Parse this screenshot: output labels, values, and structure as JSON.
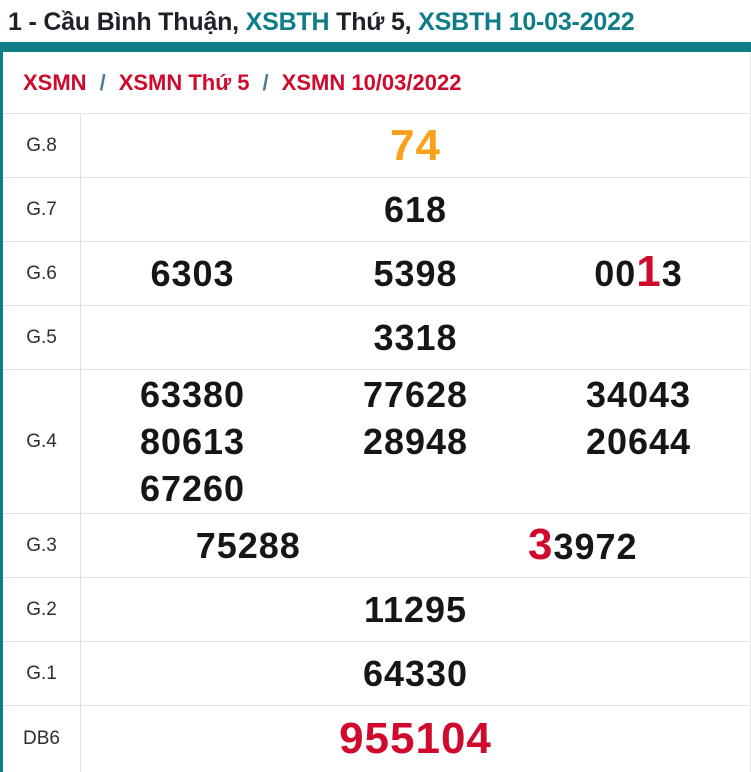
{
  "title": {
    "plain1": "1 - Cầu Bình Thuận, ",
    "link1": "XSBTH",
    "plain2": " Thứ 5, ",
    "link2": "XSBTH 10-03-2022"
  },
  "breadcrumb": {
    "item1": "XSMN",
    "sep1": "/",
    "item2": "XSMN Thứ 5",
    "sep2": "/",
    "item3": "XSMN 10/03/2022"
  },
  "table": {
    "rows": {
      "g8": {
        "label": "G.8",
        "value": "74"
      },
      "g7": {
        "label": "G.7",
        "value": "618"
      },
      "g6": {
        "label": "G.6",
        "v1": "6303",
        "v2": "5398",
        "v3_prefix": "00",
        "v3_highlight": "1",
        "v3_suffix": "3"
      },
      "g5": {
        "label": "G.5",
        "value": "3318"
      },
      "g4": {
        "label": "G.4",
        "v1": "63380",
        "v2": "77628",
        "v3": "34043",
        "v4": "80613",
        "v5": "28948",
        "v6": "20644",
        "v7": "67260"
      },
      "g3": {
        "label": "G.3",
        "v1": "75288",
        "v2_highlight": "3",
        "v2_suffix": "3972"
      },
      "g2": {
        "label": "G.2",
        "value": "11295"
      },
      "g1": {
        "label": "G.1",
        "value": "64330"
      },
      "db6": {
        "label": "DB6",
        "value": "955104"
      }
    }
  },
  "colors": {
    "teal": "#0e7d87",
    "red": "#cf0a2c",
    "orange": "#f9a11a",
    "separator_blue": "#4d7f99",
    "divider_gray": "#e2e2e2"
  }
}
